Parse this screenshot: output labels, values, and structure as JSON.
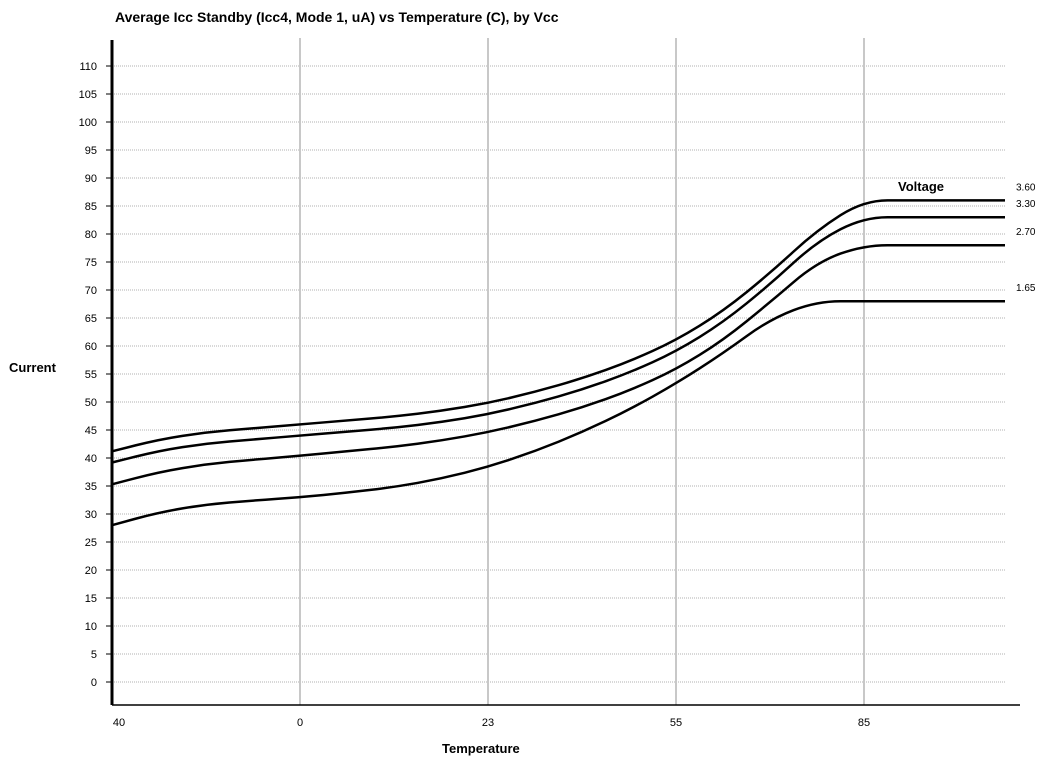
{
  "chart_data": {
    "type": "line",
    "title": "Average Icc Standby (Icc4, Mode 1, uA) vs Temperature (C), by Vcc",
    "xlabel": "Temperature",
    "ylabel": "Current",
    "legend_title": "Voltage",
    "x_ticks": [
      "40",
      "0",
      "23",
      "55",
      "85"
    ],
    "y_ticks": [
      0,
      5,
      10,
      15,
      20,
      25,
      30,
      35,
      40,
      45,
      50,
      55,
      60,
      65,
      70,
      75,
      80,
      85,
      90,
      95,
      100,
      105,
      110
    ],
    "ylim": [
      0,
      110
    ],
    "grid": true,
    "x_positions": [
      0,
      0.25,
      0.5,
      0.75,
      1,
      1.25,
      1.5,
      1.75,
      2,
      2.25,
      2.5,
      2.75,
      3,
      3.25,
      3.5,
      3.75,
      4,
      4.25,
      4.5,
      4.75
    ],
    "series": [
      {
        "name": "3.60",
        "values": [
          41.2,
          43.3,
          44.6,
          45.3,
          46.0,
          46.7,
          47.4,
          48.4,
          49.8,
          51.8,
          54.2,
          57.2,
          61.0,
          66.2,
          73.0,
          80.7,
          86.0,
          86.0,
          86.0,
          86.0
        ]
      },
      {
        "name": "3.30",
        "values": [
          39.2,
          41.3,
          42.6,
          43.3,
          44.0,
          44.7,
          45.4,
          46.4,
          47.8,
          49.8,
          52.2,
          55.2,
          59.0,
          64.2,
          71.0,
          78.7,
          83.0,
          83.0,
          83.0,
          83.0
        ]
      },
      {
        "name": "2.70",
        "values": [
          35.3,
          37.5,
          38.9,
          39.7,
          40.4,
          41.2,
          42.0,
          43.1,
          44.6,
          46.6,
          49.0,
          52.0,
          55.8,
          61.0,
          67.8,
          75.0,
          78.0,
          78.0,
          78.0,
          78.0
        ]
      },
      {
        "name": "1.65",
        "values": [
          28.0,
          30.3,
          31.7,
          32.4,
          33.0,
          33.8,
          34.8,
          36.3,
          38.4,
          41.2,
          44.6,
          48.6,
          53.3,
          58.7,
          64.8,
          68.0,
          68.0,
          68.0,
          68.0,
          68.0
        ]
      }
    ]
  }
}
